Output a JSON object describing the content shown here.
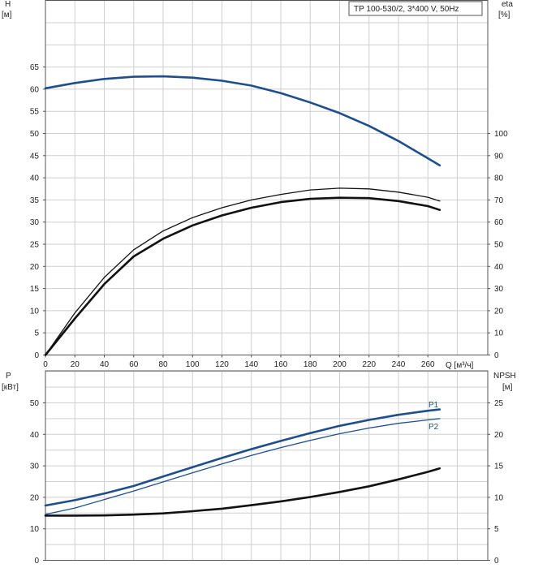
{
  "chart_data": [
    {
      "type": "line",
      "panel": "head-efficiency",
      "legend_box": "TP 100-530/2, 3*400 V, 50Hz",
      "x_axis": {
        "label": "Q [м³/ч]",
        "ticks": [
          "0",
          "20",
          "40",
          "60",
          "80",
          "100",
          "120",
          "140",
          "160",
          "180",
          "200",
          "220",
          "240",
          "260"
        ],
        "range": [
          0,
          295
        ]
      },
      "y_left": {
        "label_top": "H",
        "label_unit": "[м]",
        "ticks": [
          "0",
          "5",
          "10",
          "15",
          "20",
          "25",
          "30",
          "35",
          "40",
          "45",
          "50",
          "55",
          "60",
          "65"
        ],
        "range": [
          0,
          80
        ]
      },
      "y_right": {
        "label_top": "eta",
        "label_unit": "[%]",
        "ticks": [
          "0",
          "10",
          "20",
          "30",
          "40",
          "50",
          "60",
          "70",
          "80",
          "90",
          "100"
        ],
        "range": [
          0,
          160
        ]
      },
      "grid": true,
      "series": [
        {
          "axis": "left",
          "color": "#1f4e8c",
          "style": "thick",
          "x": [
            0,
            20,
            40,
            60,
            80,
            100,
            120,
            140,
            160,
            180,
            200,
            220,
            240,
            260,
            268
          ],
          "y": [
            60.2,
            61.4,
            62.3,
            62.8,
            62.9,
            62.6,
            61.9,
            60.8,
            59.1,
            57.0,
            54.6,
            51.7,
            48.3,
            44.4,
            42.8
          ]
        },
        {
          "axis": "right",
          "color": "#111111",
          "style": "thick",
          "x": [
            0,
            20,
            40,
            60,
            80,
            100,
            120,
            140,
            160,
            180,
            200,
            220,
            240,
            260,
            268
          ],
          "y": [
            0,
            16.5,
            32,
            44.5,
            52.5,
            58.5,
            63,
            66.5,
            69,
            70.5,
            71,
            70.8,
            69.5,
            67.2,
            65.5
          ]
        },
        {
          "axis": "right",
          "color": "#111111",
          "style": "thin",
          "x": [
            0,
            20,
            40,
            60,
            80,
            100,
            120,
            140,
            160,
            180,
            200,
            220,
            240,
            260,
            268
          ],
          "y": [
            0,
            19,
            35,
            47.5,
            56,
            62,
            66.5,
            70,
            72.5,
            74.5,
            75.3,
            75,
            73.5,
            71.2,
            69.5
          ]
        }
      ]
    },
    {
      "type": "line",
      "panel": "power-npsh",
      "y_left": {
        "label_top": "P",
        "label_unit": "[кВт]",
        "ticks": [
          "0",
          "10",
          "20",
          "30",
          "40",
          "50"
        ],
        "range": [
          0,
          56
        ]
      },
      "y_right": {
        "label_top": "NPSH",
        "label_unit": "[м]",
        "ticks": [
          "0",
          "5",
          "10",
          "15",
          "20",
          "25"
        ],
        "range": [
          0,
          28
        ]
      },
      "grid": true,
      "series": [
        {
          "name": "P1",
          "axis": "left",
          "color": "#1f4e8c",
          "style": "thick",
          "x": [
            0,
            20,
            40,
            60,
            80,
            100,
            120,
            140,
            160,
            180,
            200,
            220,
            240,
            260,
            268
          ],
          "y": [
            17.4,
            19.1,
            21.2,
            23.6,
            26.6,
            29.6,
            32.5,
            35.3,
            37.9,
            40.4,
            42.7,
            44.6,
            46.2,
            47.5,
            47.9
          ]
        },
        {
          "name": "P2",
          "axis": "left",
          "color": "#1f4e8c",
          "style": "thin",
          "x": [
            0,
            20,
            40,
            60,
            80,
            100,
            120,
            140,
            160,
            180,
            200,
            220,
            240,
            260,
            268
          ],
          "y": [
            14.6,
            16.6,
            19.3,
            22.0,
            24.9,
            27.8,
            30.6,
            33.3,
            35.8,
            38.1,
            40.2,
            42.0,
            43.5,
            44.6,
            45.0
          ]
        },
        {
          "axis": "right",
          "color": "#111111",
          "style": "thick",
          "x": [
            0,
            20,
            40,
            60,
            80,
            100,
            120,
            140,
            160,
            180,
            200,
            220,
            240,
            260,
            268
          ],
          "y": [
            7.1,
            7.1,
            7.12,
            7.25,
            7.45,
            7.8,
            8.2,
            8.75,
            9.35,
            10.05,
            10.85,
            11.75,
            12.85,
            14.05,
            14.6
          ]
        }
      ]
    }
  ]
}
